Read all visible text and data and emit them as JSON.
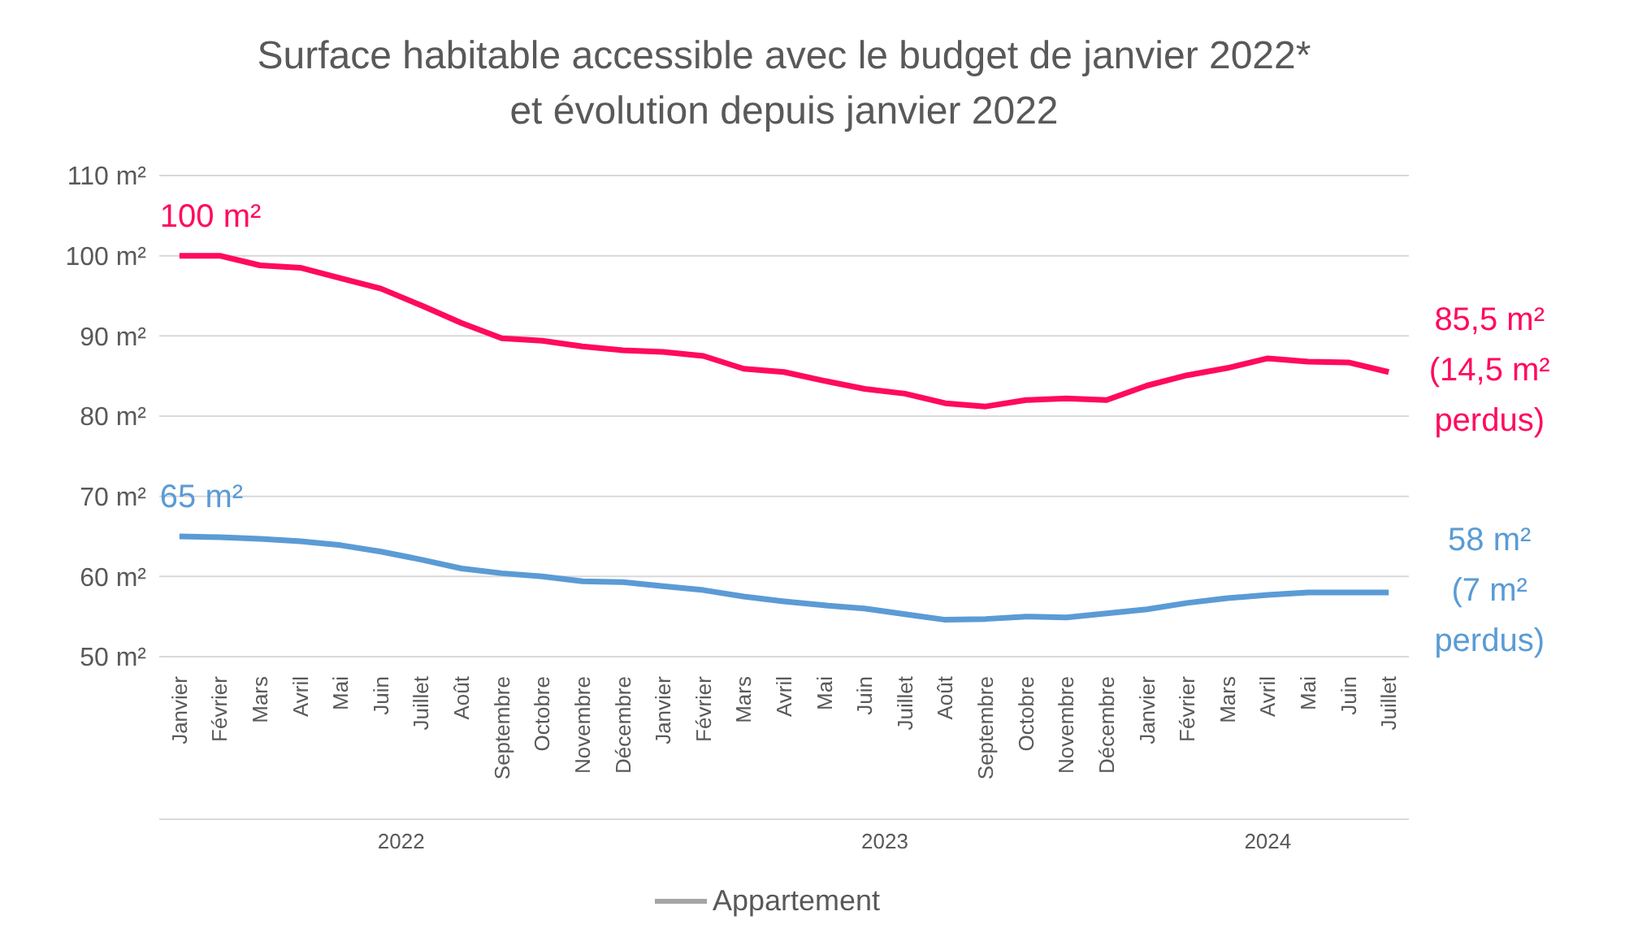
{
  "chart_data": {
    "type": "line",
    "title": "Surface habitable accessible avec le budget de janvier 2022*\net évolution depuis janvier 2022",
    "categories": [
      "Janvier",
      "Février",
      "Mars",
      "Avril",
      "Mai",
      "Juin",
      "Juillet",
      "Août",
      "Septembre",
      "Octobre",
      "Novembre",
      "Décembre",
      "Janvier",
      "Février",
      "Mars",
      "Avril",
      "Mai",
      "Juin",
      "Juillet",
      "Août",
      "Septembre",
      "Octobre",
      "Novembre",
      "Décembre",
      "Janvier",
      "Février",
      "Mars",
      "Avril",
      "Mai",
      "Juin",
      "Juillet"
    ],
    "series": [
      {
        "color": "#ff0a5e",
        "values": [
          100,
          100,
          98.8,
          98.5,
          97.2,
          95.9,
          93.8,
          91.6,
          89.7,
          89.4,
          88.7,
          88.2,
          88,
          87.5,
          85.9,
          85.5,
          84.4,
          83.4,
          82.8,
          81.6,
          81.2,
          82,
          82.2,
          82,
          83.8,
          85.1,
          86,
          87.2,
          86.8,
          86.7,
          85.5
        ]
      },
      {
        "color": "#5b9bd5",
        "values": [
          65,
          64.9,
          64.7,
          64.4,
          63.9,
          63.1,
          62.1,
          61,
          60.4,
          60,
          59.4,
          59.3,
          58.8,
          58.3,
          57.5,
          56.9,
          56.4,
          56,
          55.3,
          54.6,
          54.7,
          55,
          54.9,
          55.4,
          55.9,
          56.7,
          57.3,
          57.7,
          58,
          58,
          58
        ]
      }
    ],
    "ylim": [
      50,
      110
    ],
    "yticks": [
      {
        "value": 50,
        "label": "50 m²"
      },
      {
        "value": 60,
        "label": "60 m²"
      },
      {
        "value": 70,
        "label": "70 m²"
      },
      {
        "value": 80,
        "label": "80 m²"
      },
      {
        "value": 90,
        "label": "90 m²"
      },
      {
        "value": 100,
        "label": "100 m²"
      },
      {
        "value": 110,
        "label": "110 m²"
      }
    ],
    "grid": "y",
    "annotations": [
      "100 m²",
      "65 m²",
      "85,5 m² (14,5 m² perdus)",
      "58 m² (7 m² perdus)",
      "2022",
      "2023",
      "2024",
      "Appartement"
    ]
  }
}
